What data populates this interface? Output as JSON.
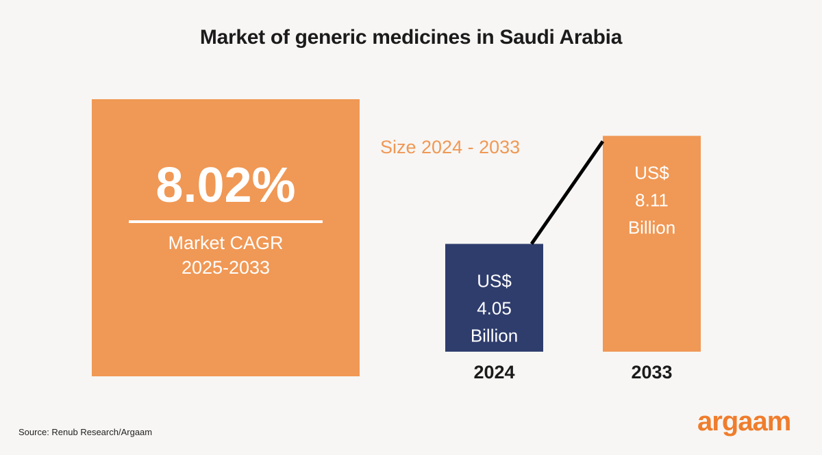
{
  "title": "Market of generic medicines in Saudi Arabia",
  "cagr": {
    "value": "8.02%",
    "label_line1": "Market CAGR",
    "label_line2": "2025-2033"
  },
  "size_title": "Size 2024 - 2033",
  "source": "Source: Renub Research/Argaam",
  "logo": "argaam",
  "colors": {
    "accent_orange": "#f09855",
    "bar_2024": "#2f3d6d",
    "bar_2033": "#f09855",
    "background": "#f7f6f4",
    "logo": "#ef7d2d"
  },
  "chart_data": {
    "type": "bar",
    "title": "Size 2024 - 2033",
    "categories": [
      "2024",
      "2033"
    ],
    "values": [
      4.05,
      8.11
    ],
    "unit": "US$ Billion",
    "data_labels": [
      [
        "US$",
        "4.05",
        "Billion"
      ],
      [
        "US$",
        "8.11",
        "Billion"
      ]
    ],
    "bar_colors": [
      "#2f3d6d",
      "#f09855"
    ],
    "connector_line": true,
    "grid": false
  }
}
